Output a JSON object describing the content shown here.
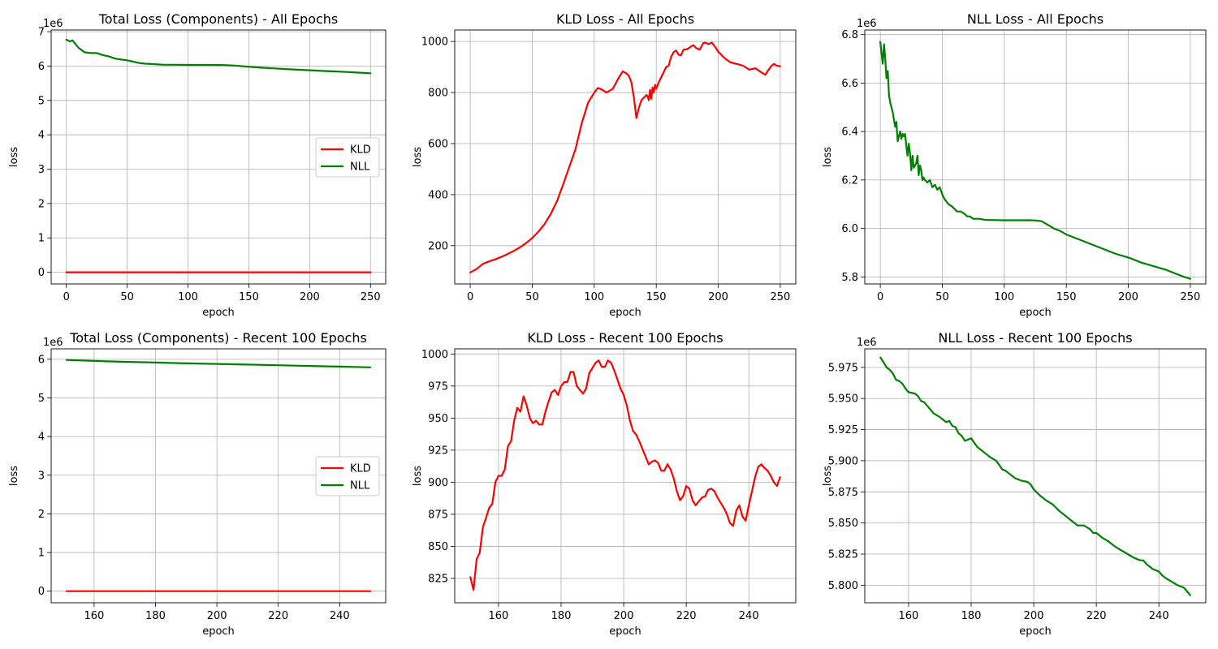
{
  "chart_data": [
    {
      "type": "line",
      "title": "Total Loss (Components) - All Epochs",
      "xlabel": "epoch",
      "ylabel": "loss",
      "offset_label": "1e6",
      "xlim": [
        -12.5,
        262.5
      ],
      "ylim": [
        -0.34,
        7.05
      ],
      "xticks": [
        0,
        50,
        100,
        150,
        200,
        250
      ],
      "yticks": [
        0,
        1,
        2,
        3,
        4,
        5,
        6,
        7
      ],
      "grid": true,
      "legend": "center-right",
      "series": [
        {
          "name": "KLD",
          "color": "#ff0000",
          "x": [
            0,
            250
          ],
          "y": [
            0.0001,
            0.0009
          ]
        },
        {
          "name": "NLL",
          "color": "#008000",
          "x": [
            0,
            3,
            5,
            8,
            10,
            12,
            15,
            20,
            25,
            30,
            35,
            40,
            45,
            50,
            55,
            60,
            65,
            70,
            80,
            90,
            100,
            110,
            120,
            125,
            130,
            140,
            150,
            160,
            170,
            180,
            190,
            200,
            210,
            220,
            230,
            240,
            250
          ],
          "y": [
            6.77,
            6.72,
            6.75,
            6.62,
            6.53,
            6.48,
            6.4,
            6.38,
            6.38,
            6.32,
            6.28,
            6.22,
            6.19,
            6.17,
            6.13,
            6.09,
            6.07,
            6.06,
            6.04,
            6.04,
            6.035,
            6.034,
            6.034,
            6.033,
            6.03,
            6.01,
            5.98,
            5.955,
            5.935,
            5.915,
            5.895,
            5.88,
            5.86,
            5.845,
            5.83,
            5.81,
            5.792
          ]
        }
      ]
    },
    {
      "type": "line",
      "title": "KLD Loss - All Epochs",
      "xlabel": "epoch",
      "ylabel": "loss",
      "xlim": [
        -12.5,
        262.5
      ],
      "ylim": [
        50,
        1045
      ],
      "xticks": [
        0,
        50,
        100,
        150,
        200,
        250
      ],
      "yticks": [
        200,
        400,
        600,
        800,
        1000
      ],
      "grid": true,
      "series": [
        {
          "color": "#ff0000",
          "x": [
            0,
            5,
            10,
            15,
            20,
            25,
            30,
            35,
            40,
            45,
            50,
            55,
            60,
            65,
            70,
            75,
            80,
            85,
            90,
            95,
            100,
            103,
            106,
            110,
            115,
            120,
            123,
            126,
            128,
            130,
            132,
            134,
            136,
            138,
            140,
            142,
            143,
            144,
            145,
            146,
            147,
            148,
            149,
            150,
            152,
            155,
            158,
            160,
            162,
            164,
            166,
            168,
            170,
            172,
            175,
            178,
            180,
            182,
            185,
            188,
            190,
            192,
            195,
            198,
            200,
            205,
            210,
            215,
            220,
            225,
            230,
            235,
            238,
            240,
            243,
            245,
            247,
            250
          ],
          "y": [
            95,
            108,
            128,
            138,
            146,
            156,
            167,
            179,
            193,
            210,
            230,
            255,
            285,
            325,
            375,
            440,
            510,
            580,
            680,
            760,
            800,
            818,
            812,
            800,
            815,
            860,
            883,
            875,
            865,
            840,
            780,
            700,
            740,
            770,
            780,
            790,
            785,
            770,
            810,
            775,
            820,
            800,
            830,
            815,
            840,
            870,
            900,
            905,
            940,
            958,
            965,
            948,
            946,
            968,
            970,
            980,
            986,
            975,
            968,
            994,
            995,
            990,
            995,
            975,
            960,
            935,
            918,
            912,
            905,
            890,
            895,
            878,
            870,
            885,
            905,
            912,
            905,
            903
          ]
        }
      ]
    },
    {
      "type": "line",
      "title": "NLL Loss - All Epochs",
      "xlabel": "epoch",
      "ylabel": "loss",
      "offset_label": "1e6",
      "xlim": [
        -12.5,
        262.5
      ],
      "ylim": [
        5.771,
        6.819
      ],
      "xticks": [
        0,
        50,
        100,
        150,
        200,
        250
      ],
      "yticks": [
        5.8,
        6.0,
        6.2,
        6.4,
        6.6,
        6.8
      ],
      "ytick_labels": [
        "5.8",
        "6.0",
        "6.2",
        "6.4",
        "6.6",
        "6.8"
      ],
      "grid": true,
      "series": [
        {
          "color": "#008000",
          "x": [
            0,
            2,
            3,
            4,
            5,
            6,
            7,
            8,
            10,
            12,
            13,
            14,
            15,
            16,
            17,
            18,
            19,
            20,
            21,
            22,
            23,
            24,
            25,
            26,
            27,
            28,
            29,
            30,
            31,
            32,
            33,
            34,
            35,
            36,
            38,
            40,
            42,
            44,
            46,
            48,
            50,
            52,
            55,
            58,
            60,
            62,
            65,
            68,
            70,
            72,
            75,
            80,
            85,
            90,
            100,
            110,
            120,
            125,
            130,
            135,
            140,
            145,
            150,
            160,
            170,
            180,
            190,
            200,
            210,
            220,
            230,
            240,
            245,
            250
          ],
          "y": [
            6.77,
            6.68,
            6.76,
            6.7,
            6.62,
            6.65,
            6.55,
            6.52,
            6.48,
            6.42,
            6.44,
            6.36,
            6.38,
            6.4,
            6.37,
            6.39,
            6.38,
            6.39,
            6.34,
            6.3,
            6.35,
            6.31,
            6.24,
            6.3,
            6.25,
            6.26,
            6.27,
            6.3,
            6.22,
            6.26,
            6.24,
            6.2,
            6.21,
            6.2,
            6.19,
            6.2,
            6.17,
            6.18,
            6.16,
            6.17,
            6.14,
            6.12,
            6.1,
            6.09,
            6.08,
            6.07,
            6.07,
            6.06,
            6.05,
            6.05,
            6.04,
            6.04,
            6.035,
            6.035,
            6.034,
            6.034,
            6.034,
            6.033,
            6.03,
            6.015,
            6.0,
            5.99,
            5.975,
            5.955,
            5.935,
            5.915,
            5.895,
            5.88,
            5.86,
            5.845,
            5.83,
            5.81,
            5.8,
            5.792
          ]
        }
      ]
    },
    {
      "type": "line",
      "title": "Total Loss (Components) - Recent 100 Epochs",
      "xlabel": "epoch",
      "ylabel": "loss",
      "offset_label": "1e6",
      "xlim": [
        146,
        255
      ],
      "ylim": [
        -0.3,
        6.27
      ],
      "xticks": [
        160,
        180,
        200,
        220,
        240
      ],
      "yticks": [
        0,
        1,
        2,
        3,
        4,
        5,
        6
      ],
      "grid": true,
      "legend": "center-right",
      "series": [
        {
          "name": "KLD",
          "color": "#ff0000",
          "x": [
            151,
            250
          ],
          "y": [
            0.0008,
            0.0009
          ]
        },
        {
          "name": "NLL",
          "color": "#008000",
          "x": [
            151,
            160,
            170,
            180,
            190,
            200,
            210,
            220,
            230,
            240,
            250
          ],
          "y": [
            5.983,
            5.958,
            5.935,
            5.915,
            5.895,
            5.88,
            5.862,
            5.846,
            5.828,
            5.81,
            5.792
          ]
        }
      ]
    },
    {
      "type": "line",
      "title": "KLD Loss - Recent 100 Epochs",
      "xlabel": "epoch",
      "ylabel": "loss",
      "xlim": [
        146,
        255
      ],
      "ylim": [
        806,
        1004
      ],
      "xticks": [
        160,
        180,
        200,
        220,
        240
      ],
      "yticks": [
        825,
        850,
        875,
        900,
        925,
        950,
        975,
        1000
      ],
      "grid": true,
      "series": [
        {
          "color": "#ff0000",
          "x": [
            151,
            152,
            153,
            154,
            155,
            156,
            157,
            158,
            159,
            160,
            161,
            162,
            163,
            164,
            165,
            166,
            167,
            168,
            169,
            170,
            171,
            172,
            173,
            174,
            175,
            176,
            177,
            178,
            179,
            180,
            181,
            182,
            183,
            184,
            185,
            186,
            187,
            188,
            189,
            190,
            191,
            192,
            193,
            194,
            195,
            196,
            197,
            198,
            199,
            200,
            201,
            202,
            203,
            204,
            205,
            206,
            207,
            208,
            209,
            210,
            211,
            212,
            213,
            214,
            215,
            216,
            217,
            218,
            219,
            220,
            221,
            222,
            223,
            224,
            225,
            226,
            227,
            228,
            229,
            230,
            231,
            232,
            233,
            234,
            235,
            236,
            237,
            238,
            239,
            240,
            241,
            242,
            243,
            244,
            245,
            246,
            247,
            248,
            249,
            250
          ],
          "y": [
            826,
            816,
            840,
            845,
            865,
            872,
            880,
            883,
            900,
            905,
            905,
            910,
            928,
            932,
            948,
            958,
            955,
            967,
            960,
            950,
            946,
            948,
            945,
            945,
            955,
            963,
            970,
            972,
            968,
            975,
            978,
            978,
            986,
            986,
            975,
            972,
            969,
            973,
            985,
            989,
            993,
            995,
            990,
            990,
            995,
            993,
            987,
            980,
            973,
            968,
            960,
            948,
            940,
            937,
            932,
            926,
            920,
            914,
            916,
            917,
            915,
            909,
            909,
            914,
            910,
            903,
            893,
            886,
            889,
            897,
            895,
            886,
            882,
            885,
            888,
            889,
            894,
            895,
            893,
            888,
            884,
            880,
            875,
            868,
            866,
            878,
            882,
            873,
            870,
            882,
            893,
            904,
            912,
            914,
            911,
            909,
            905,
            900,
            897,
            904
          ]
        }
      ]
    },
    {
      "type": "line",
      "title": "NLL Loss - Recent 100 Epochs",
      "xlabel": "epoch",
      "ylabel": "loss",
      "offset_label": "1e6",
      "xlim": [
        146,
        255
      ],
      "ylim": [
        5.7859,
        5.9899
      ],
      "xticks": [
        160,
        180,
        200,
        220,
        240
      ],
      "yticks": [
        5.8,
        5.825,
        5.85,
        5.875,
        5.9,
        5.925,
        5.95,
        5.975
      ],
      "ytick_labels": [
        "5.800",
        "5.825",
        "5.850",
        "5.875",
        "5.900",
        "5.925",
        "5.950",
        "5.975"
      ],
      "grid": true,
      "series": [
        {
          "color": "#008000",
          "x": [
            151,
            152,
            153,
            154,
            155,
            156,
            157,
            158,
            159,
            160,
            162,
            163,
            164,
            165,
            166,
            167,
            168,
            170,
            172,
            173,
            174,
            175,
            176,
            177,
            178,
            180,
            182,
            184,
            186,
            188,
            190,
            191,
            192,
            194,
            196,
            198,
            199,
            200,
            202,
            204,
            206,
            208,
            210,
            212,
            214,
            216,
            218,
            219,
            220,
            222,
            224,
            225,
            226,
            228,
            230,
            232,
            234,
            235,
            236,
            238,
            240,
            241,
            242,
            244,
            246,
            248,
            249,
            250
          ],
          "y": [
            5.983,
            5.979,
            5.975,
            5.973,
            5.97,
            5.965,
            5.964,
            5.962,
            5.958,
            5.955,
            5.954,
            5.952,
            5.948,
            5.947,
            5.944,
            5.941,
            5.938,
            5.935,
            5.931,
            5.932,
            5.928,
            5.927,
            5.922,
            5.92,
            5.916,
            5.918,
            5.911,
            5.907,
            5.903,
            5.9,
            5.893,
            5.892,
            5.89,
            5.886,
            5.884,
            5.883,
            5.881,
            5.877,
            5.872,
            5.868,
            5.865,
            5.86,
            5.856,
            5.852,
            5.848,
            5.848,
            5.845,
            5.842,
            5.842,
            5.838,
            5.835,
            5.833,
            5.831,
            5.828,
            5.825,
            5.822,
            5.82,
            5.82,
            5.817,
            5.813,
            5.811,
            5.808,
            5.806,
            5.803,
            5.8,
            5.798,
            5.795,
            5.792
          ]
        }
      ]
    }
  ]
}
